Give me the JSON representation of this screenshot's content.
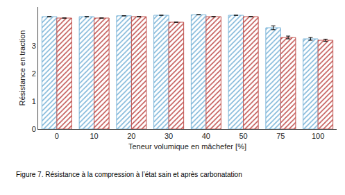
{
  "chart_data": {
    "type": "bar",
    "categories": [
      "0",
      "10",
      "20",
      "30",
      "40",
      "50",
      "75",
      "100"
    ],
    "series": [
      {
        "color": "#7ab4d8",
        "values": [
          4.05,
          4.05,
          4.08,
          4.1,
          4.12,
          4.1,
          3.65,
          3.25
        ],
        "errors": [
          0.0,
          0.0,
          0.0,
          0.0,
          0.0,
          0.0,
          0.07,
          0.05
        ]
      },
      {
        "color": "#c0504d",
        "values": [
          4.0,
          4.0,
          4.05,
          3.85,
          4.05,
          4.05,
          3.3,
          3.2
        ],
        "errors": [
          0.0,
          0.0,
          0.0,
          0.0,
          0.0,
          0.0,
          0.05,
          0.04
        ]
      }
    ],
    "xlabel": "Teneur volumique en mâchefer [%]",
    "ylabel": "Résistance en traction",
    "caption": "Figure 7. Résistance à la compression à l’état sain et après carbonatation",
    "ylim": [
      0,
      4.4
    ],
    "yticks": [
      0,
      1,
      2,
      3
    ],
    "grid": false
  }
}
